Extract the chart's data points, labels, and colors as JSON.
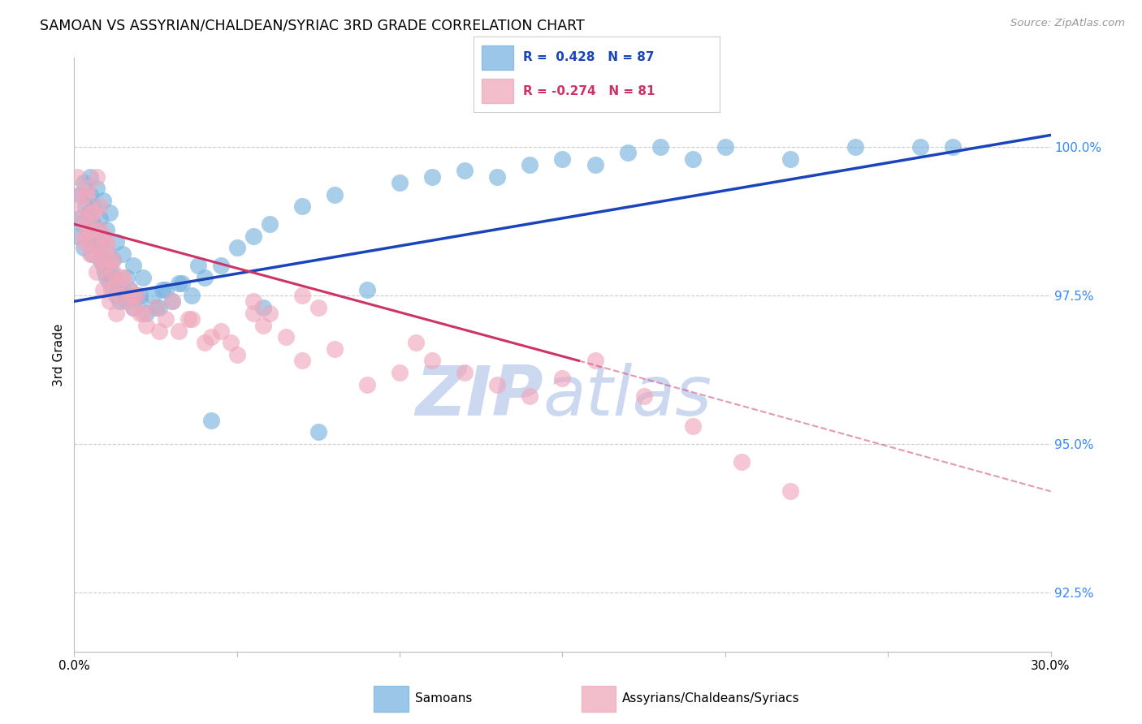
{
  "title": "SAMOAN VS ASSYRIAN/CHALDEAN/SYRIAC 3RD GRADE CORRELATION CHART",
  "source_text": "Source: ZipAtlas.com",
  "ylabel_label": "3rd Grade",
  "x_min": 0.0,
  "x_max": 30.0,
  "y_min": 91.5,
  "y_max": 101.5,
  "ytick_labels": [
    "92.5%",
    "95.0%",
    "97.5%",
    "100.0%"
  ],
  "ytick_values": [
    92.5,
    95.0,
    97.5,
    100.0
  ],
  "blue_color": "#7ab4e0",
  "pink_color": "#f0a8bc",
  "blue_line_color": "#1a44bb",
  "pink_line_color": "#cc3366",
  "watermark_color": "#ccd8f0",
  "blue_scatter_x": [
    0.1,
    0.15,
    0.2,
    0.25,
    0.3,
    0.35,
    0.4,
    0.45,
    0.5,
    0.55,
    0.6,
    0.65,
    0.7,
    0.75,
    0.8,
    0.85,
    0.9,
    0.95,
    1.0,
    1.05,
    1.1,
    1.15,
    1.2,
    1.25,
    1.3,
    1.35,
    1.4,
    1.5,
    1.6,
    1.7,
    1.8,
    1.9,
    2.0,
    2.2,
    2.4,
    2.6,
    2.8,
    3.0,
    3.3,
    3.6,
    4.0,
    4.5,
    5.0,
    5.5,
    6.0,
    7.0,
    8.0,
    9.0,
    10.0,
    11.0,
    12.0,
    13.0,
    14.0,
    15.0,
    16.0,
    17.0,
    18.0,
    19.0,
    20.0,
    22.0,
    24.0,
    26.0,
    27.0,
    1.2,
    1.6,
    2.0,
    2.5,
    3.2,
    3.8,
    0.5,
    0.7,
    0.9,
    1.1,
    0.3,
    0.5,
    0.6,
    0.8,
    1.0,
    1.3,
    1.5,
    1.8,
    2.1,
    2.7,
    4.2,
    5.8,
    7.5
  ],
  "blue_scatter_y": [
    98.5,
    98.8,
    99.2,
    98.7,
    98.3,
    99.0,
    98.6,
    98.9,
    98.4,
    98.2,
    98.7,
    98.4,
    98.6,
    98.3,
    98.1,
    98.4,
    98.0,
    97.9,
    97.8,
    98.2,
    97.7,
    97.9,
    97.6,
    97.8,
    97.5,
    97.7,
    97.4,
    97.6,
    97.4,
    97.6,
    97.3,
    97.5,
    97.4,
    97.2,
    97.5,
    97.3,
    97.6,
    97.4,
    97.7,
    97.5,
    97.8,
    98.0,
    98.3,
    98.5,
    98.7,
    99.0,
    99.2,
    97.6,
    99.4,
    99.5,
    99.6,
    99.5,
    99.7,
    99.8,
    99.7,
    99.9,
    100.0,
    99.8,
    100.0,
    99.8,
    100.0,
    100.0,
    100.0,
    98.1,
    97.8,
    97.5,
    97.3,
    97.7,
    98.0,
    99.5,
    99.3,
    99.1,
    98.9,
    99.4,
    99.2,
    99.0,
    98.8,
    98.6,
    98.4,
    98.2,
    98.0,
    97.8,
    97.6,
    95.4,
    97.3,
    95.2
  ],
  "pink_scatter_x": [
    0.1,
    0.15,
    0.2,
    0.25,
    0.3,
    0.35,
    0.4,
    0.45,
    0.5,
    0.55,
    0.6,
    0.65,
    0.7,
    0.75,
    0.8,
    0.85,
    0.9,
    0.95,
    1.0,
    1.05,
    1.1,
    1.15,
    1.2,
    1.3,
    1.4,
    1.5,
    1.6,
    1.7,
    1.8,
    1.9,
    2.0,
    2.2,
    2.5,
    2.8,
    3.2,
    3.6,
    4.0,
    4.5,
    5.0,
    5.5,
    6.5,
    7.0,
    8.0,
    9.0,
    10.0,
    11.0,
    12.0,
    13.0,
    14.0,
    15.0,
    0.3,
    0.5,
    0.7,
    0.9,
    1.1,
    1.3,
    0.4,
    0.6,
    0.8,
    1.0,
    1.2,
    1.5,
    1.8,
    2.1,
    2.6,
    3.0,
    3.5,
    4.2,
    5.8,
    7.5,
    16.0,
    17.5,
    19.0,
    20.5,
    22.0,
    10.5,
    7.0,
    6.0,
    5.5,
    4.8
  ],
  "pink_scatter_y": [
    99.5,
    99.2,
    98.8,
    99.0,
    98.5,
    98.7,
    99.3,
    98.6,
    98.4,
    98.9,
    98.2,
    98.6,
    99.5,
    98.3,
    99.0,
    98.1,
    98.5,
    98.0,
    98.3,
    97.8,
    98.1,
    97.6,
    97.9,
    97.7,
    97.5,
    97.8,
    97.4,
    97.6,
    97.3,
    97.5,
    97.2,
    97.0,
    97.3,
    97.1,
    96.9,
    97.1,
    96.7,
    96.9,
    96.5,
    97.2,
    96.8,
    96.4,
    96.6,
    96.0,
    96.2,
    96.4,
    96.2,
    96.0,
    95.8,
    96.1,
    98.4,
    98.2,
    97.9,
    97.6,
    97.4,
    97.2,
    99.2,
    98.9,
    98.6,
    98.4,
    98.1,
    97.8,
    97.5,
    97.2,
    96.9,
    97.4,
    97.1,
    96.8,
    97.0,
    97.3,
    96.4,
    95.8,
    95.3,
    94.7,
    94.2,
    96.7,
    97.5,
    97.2,
    97.4,
    96.7
  ],
  "blue_line_x0": 0.0,
  "blue_line_x1": 30.0,
  "blue_line_y0": 97.4,
  "blue_line_y1": 100.2,
  "pink_line_x0": 0.0,
  "pink_line_x1": 15.5,
  "pink_line_y0": 98.7,
  "pink_line_y1": 96.4,
  "pink_dashed_x0": 15.5,
  "pink_dashed_x1": 30.0,
  "pink_dashed_y0": 96.4,
  "pink_dashed_y1": 94.2
}
